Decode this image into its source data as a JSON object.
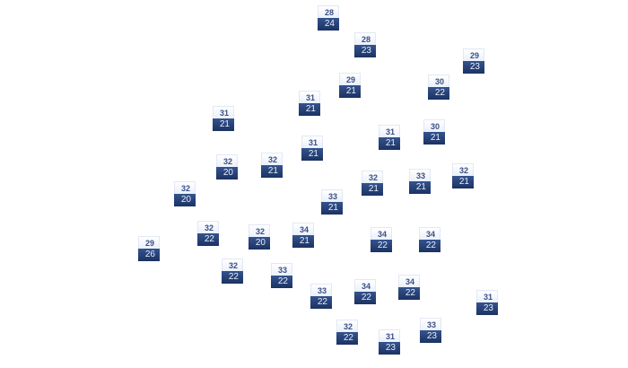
{
  "markers": [
    {
      "high": "28",
      "low": "24"
    },
    {
      "high": "28",
      "low": "23"
    },
    {
      "high": "29",
      "low": "23"
    },
    {
      "high": "29",
      "low": "21"
    },
    {
      "high": "30",
      "low": "22"
    },
    {
      "high": "31",
      "low": "21"
    },
    {
      "high": "31",
      "low": "21"
    },
    {
      "high": "31",
      "low": "21"
    },
    {
      "high": "30",
      "low": "21"
    },
    {
      "high": "31",
      "low": "21"
    },
    {
      "high": "32",
      "low": "20"
    },
    {
      "high": "32",
      "low": "21"
    },
    {
      "high": "32",
      "low": "21"
    },
    {
      "high": "33",
      "low": "21"
    },
    {
      "high": "32",
      "low": "21"
    },
    {
      "high": "32",
      "low": "20"
    },
    {
      "high": "33",
      "low": "21"
    },
    {
      "high": "32",
      "low": "22"
    },
    {
      "high": "32",
      "low": "20"
    },
    {
      "high": "34",
      "low": "21"
    },
    {
      "high": "34",
      "low": "22"
    },
    {
      "high": "34",
      "low": "22"
    },
    {
      "high": "29",
      "low": "26"
    },
    {
      "high": "32",
      "low": "22"
    },
    {
      "high": "33",
      "low": "22"
    },
    {
      "high": "33",
      "low": "22"
    },
    {
      "high": "34",
      "low": "22"
    },
    {
      "high": "34",
      "low": "22"
    },
    {
      "high": "31",
      "low": "23"
    },
    {
      "high": "32",
      "low": "22"
    },
    {
      "high": "31",
      "low": "23"
    },
    {
      "high": "33",
      "low": "23"
    }
  ]
}
